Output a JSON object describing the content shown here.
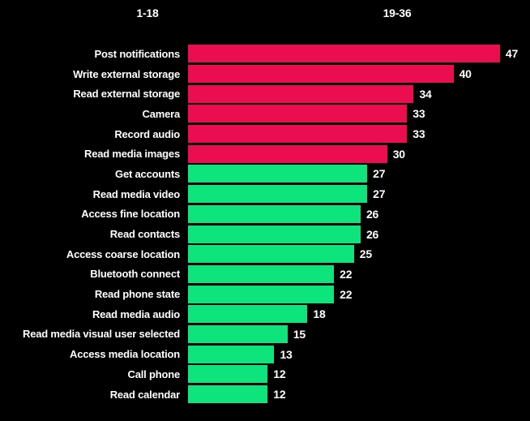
{
  "page": {
    "background_color": "#000000",
    "text_color": "#ffffff"
  },
  "header": {
    "left_label": "1-18",
    "right_label": "19-36"
  },
  "chart_data": {
    "type": "bar",
    "orientation": "horizontal",
    "title": "",
    "xlabel": "",
    "ylabel": "",
    "xlim": [
      0,
      50
    ],
    "grid": false,
    "legend": "none",
    "value_labels": "outside-end",
    "group_colors": {
      "high": "#EA0E50",
      "low": "#0DE47C"
    },
    "categories": [
      "Post notifications",
      "Write external storage",
      "Read external storage",
      "Camera",
      "Record audio",
      "Read media images",
      "Get accounts",
      "Read media video",
      "Access fine location",
      "Read contacts",
      "Access coarse location",
      "Bluetooth connect",
      "Read phone state",
      "Read media audio",
      "Read media visual user selected",
      "Access media location",
      "Call phone",
      "Read calendar"
    ],
    "values": [
      47,
      40,
      34,
      33,
      33,
      30,
      27,
      27,
      26,
      26,
      25,
      22,
      22,
      18,
      15,
      13,
      12,
      12
    ],
    "bars": [
      {
        "label": "Post notifications",
        "value": 47,
        "color": "#EA0E50"
      },
      {
        "label": "Write external storage",
        "value": 40,
        "color": "#EA0E50"
      },
      {
        "label": "Read external storage",
        "value": 34,
        "color": "#EA0E50"
      },
      {
        "label": "Camera",
        "value": 33,
        "color": "#EA0E50"
      },
      {
        "label": "Record audio",
        "value": 33,
        "color": "#EA0E50"
      },
      {
        "label": "Read media images",
        "value": 30,
        "color": "#EA0E50"
      },
      {
        "label": "Get accounts",
        "value": 27,
        "color": "#0DE47C"
      },
      {
        "label": "Read media video",
        "value": 27,
        "color": "#0DE47C"
      },
      {
        "label": "Access fine location",
        "value": 26,
        "color": "#0DE47C"
      },
      {
        "label": "Read contacts",
        "value": 26,
        "color": "#0DE47C"
      },
      {
        "label": "Access coarse location",
        "value": 25,
        "color": "#0DE47C"
      },
      {
        "label": "Bluetooth connect",
        "value": 22,
        "color": "#0DE47C"
      },
      {
        "label": "Read phone state",
        "value": 22,
        "color": "#0DE47C"
      },
      {
        "label": "Read media audio",
        "value": 18,
        "color": "#0DE47C"
      },
      {
        "label": "Read media visual user selected",
        "value": 15,
        "color": "#0DE47C"
      },
      {
        "label": "Access media location",
        "value": 13,
        "color": "#0DE47C"
      },
      {
        "label": "Call phone",
        "value": 12,
        "color": "#0DE47C"
      },
      {
        "label": "Read calendar",
        "value": 12,
        "color": "#0DE47C"
      }
    ]
  }
}
